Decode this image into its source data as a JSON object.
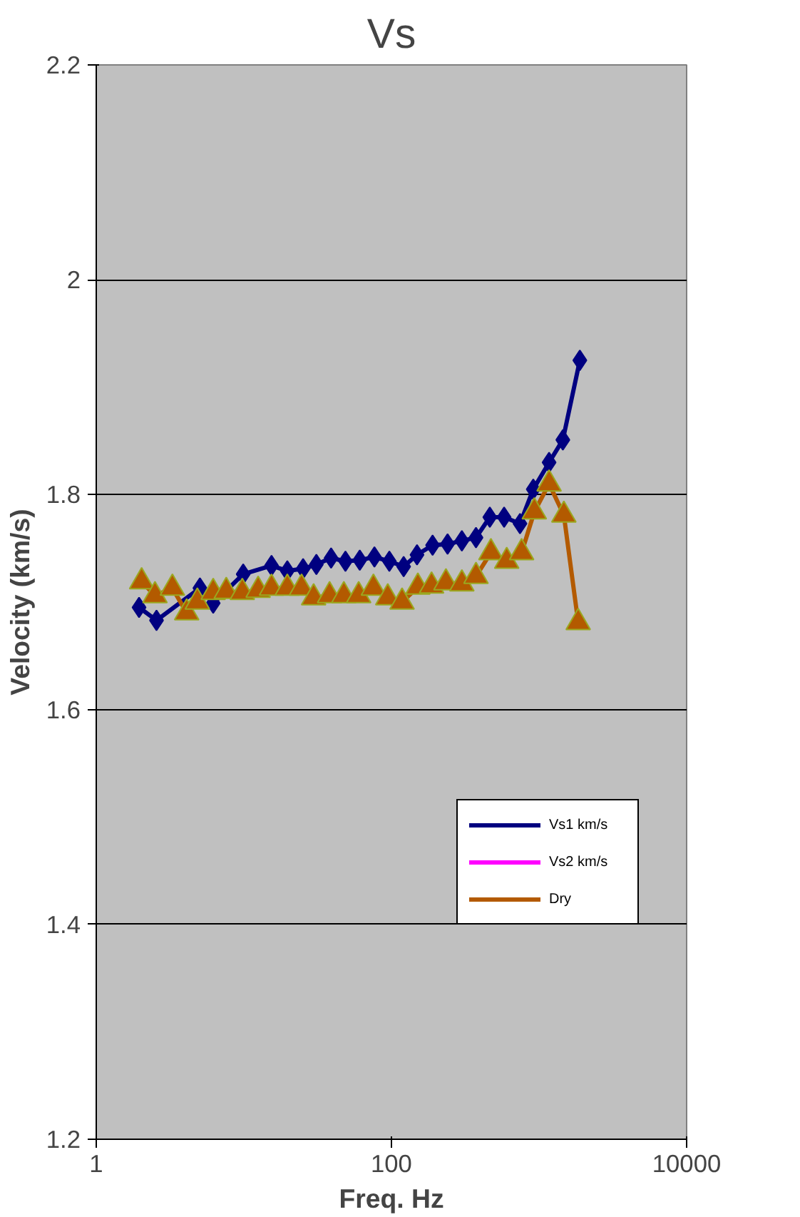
{
  "chart_data": {
    "type": "line",
    "title": "Vs",
    "xlabel": "Freq. Hz",
    "ylabel": "Velocity (km/s)",
    "log": "x",
    "xlim": [
      1,
      10000
    ],
    "xticks": [
      1,
      100,
      10000
    ],
    "ylim": [
      1.2,
      2.2
    ],
    "yticks": [
      1.2,
      1.4,
      1.6,
      1.8,
      2,
      2.2
    ],
    "grid": "y",
    "legend": "bottom right",
    "series": [
      {
        "name": "Vs1 km/s",
        "color": "#000080",
        "marker": "diamond",
        "x": [
          1.95,
          2.56,
          5.04,
          6.2,
          9.9,
          15.4,
          19.7,
          25.2,
          31,
          39,
          48.8,
          61,
          76.7,
          96.8,
          121,
          149,
          190,
          240,
          300,
          374,
          464,
          580,
          743,
          914,
          1170,
          1450,
          1890
        ],
        "values": [
          1.695,
          1.683,
          1.713,
          1.699,
          1.726,
          1.734,
          1.729,
          1.731,
          1.735,
          1.741,
          1.738,
          1.739,
          1.742,
          1.738,
          1.733,
          1.744,
          1.753,
          1.754,
          1.757,
          1.76,
          1.779,
          1.779,
          1.773,
          1.805,
          1.83,
          1.851,
          1.925
        ]
      },
      {
        "name": "Vs2 km/s",
        "color": "#ff00ff",
        "marker": "square"
      },
      {
        "name": "Dry",
        "color": "#b35a00",
        "marker": "triangle",
        "x": [
          2.03,
          2.5,
          3.28,
          4.1,
          4.84,
          6.2,
          7.6,
          9.76,
          12.5,
          15.4,
          19.7,
          24.6,
          29.7,
          38.1,
          47.6,
          60,
          75.5,
          94.4,
          118,
          151,
          187,
          234,
          300,
          374,
          472,
          604,
          762,
          929,
          1170,
          1473,
          1842
        ],
        "values": [
          1.719,
          1.706,
          1.713,
          1.69,
          1.7,
          1.709,
          1.71,
          1.709,
          1.711,
          1.713,
          1.713,
          1.713,
          1.704,
          1.706,
          1.706,
          1.706,
          1.713,
          1.704,
          1.7,
          1.714,
          1.715,
          1.718,
          1.717,
          1.724,
          1.746,
          1.738,
          1.746,
          1.784,
          1.81,
          1.781,
          1.681
        ]
      }
    ]
  }
}
